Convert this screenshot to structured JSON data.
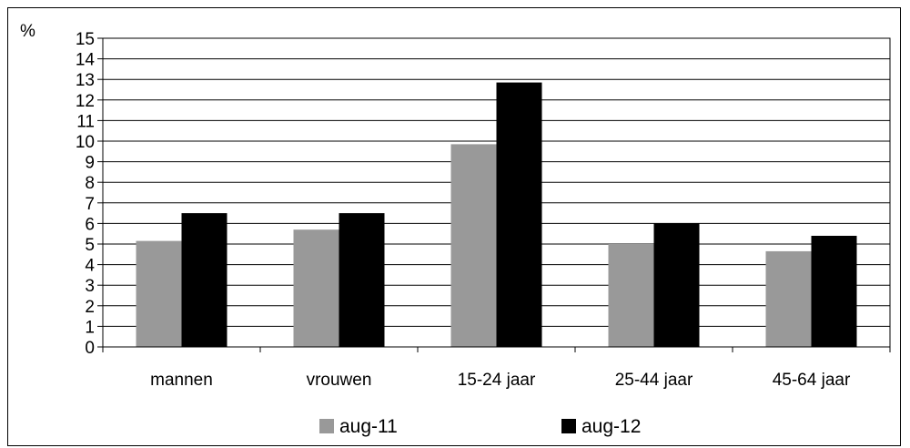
{
  "chart_data": {
    "type": "bar",
    "ylabel": "%",
    "ylim": [
      0,
      15
    ],
    "ytick_step": 1,
    "grid": true,
    "legend_position": "bottom",
    "categories": [
      "mannen",
      "vrouwen",
      "15-24 jaar",
      "25-44 jaar",
      "45-64 jaar"
    ],
    "series": [
      {
        "name": "aug-11",
        "color": "#999999",
        "values": [
          5.15,
          5.7,
          9.85,
          5.0,
          4.65
        ]
      },
      {
        "name": "aug-12",
        "color": "#000000",
        "values": [
          6.5,
          6.5,
          12.85,
          6.0,
          5.4
        ]
      }
    ]
  }
}
